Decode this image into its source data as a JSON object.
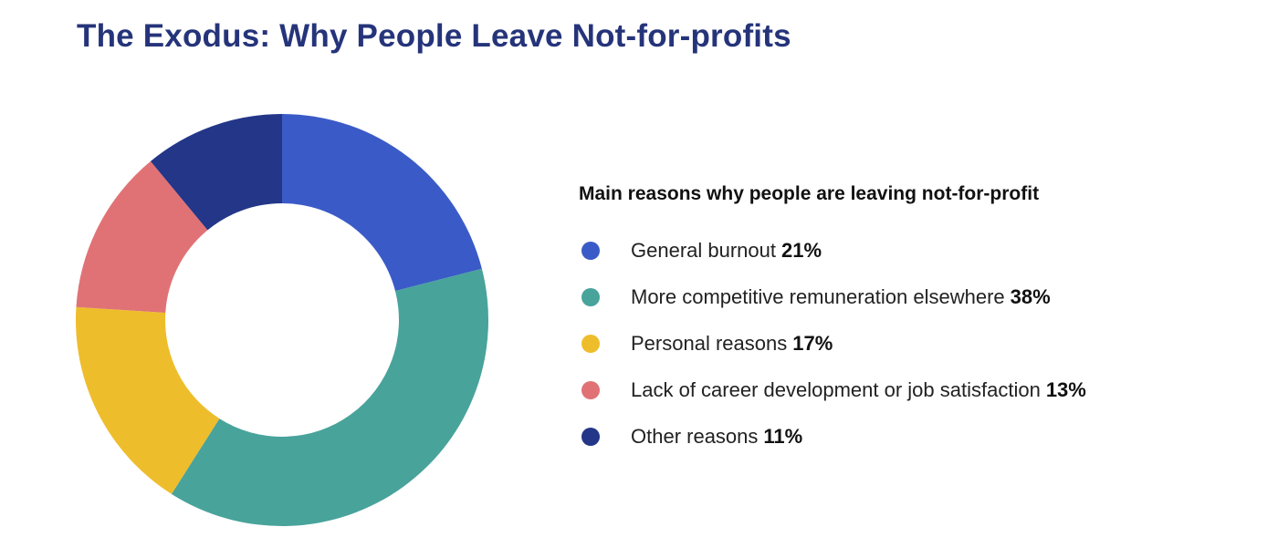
{
  "title": "The Exodus: Why People Leave Not-for-profits",
  "legend": {
    "title": "Main reasons why people are leaving not-for-profit",
    "items": [
      {
        "label": "General burnout",
        "value": "21%",
        "color": "#3a5bc7"
      },
      {
        "label": "More competitive remuneration elsewhere",
        "value": "38%",
        "color": "#48a39b"
      },
      {
        "label": "Personal reasons",
        "value": "17%",
        "color": "#eebd2b"
      },
      {
        "label": "Lack of career development or job satisfaction",
        "value": "13%",
        "color": "#e07275"
      },
      {
        "label": "Other reasons",
        "value": "11%",
        "color": "#233688"
      }
    ]
  },
  "chart_data": {
    "type": "pie",
    "variant": "donut",
    "title": "The Exodus: Why People Leave Not-for-profits",
    "subtitle": "Main reasons why people are leaving not-for-profit",
    "categories": [
      "General burnout",
      "More competitive remuneration elsewhere",
      "Personal reasons",
      "Lack of career development or job satisfaction",
      "Other reasons"
    ],
    "values": [
      21,
      38,
      17,
      13,
      11
    ],
    "unit": "%",
    "colors": [
      "#3a5bc7",
      "#48a39b",
      "#eebd2b",
      "#e07275",
      "#233688"
    ],
    "start_angle": "12 o'clock",
    "direction": "clockwise",
    "legend_position": "right"
  }
}
